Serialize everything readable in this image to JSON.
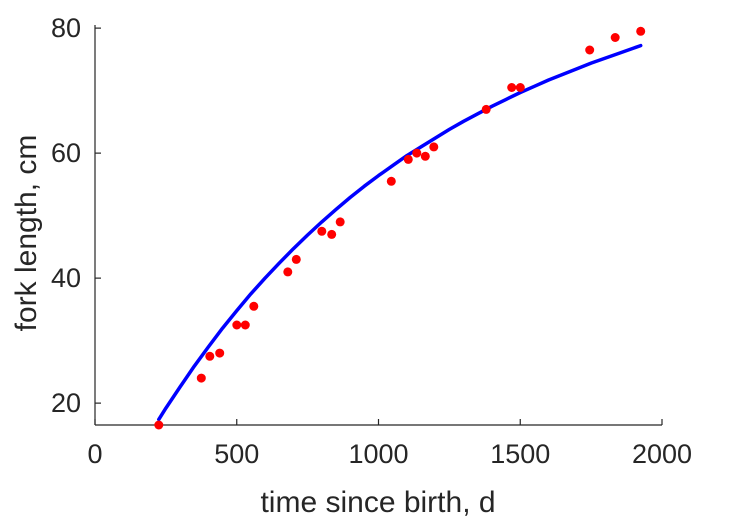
{
  "chart_data": {
    "type": "scatter",
    "xlabel": "time since birth, d",
    "ylabel": "fork length, cm",
    "xlim": [
      0,
      2000
    ],
    "ylim": [
      16.5,
      80.5
    ],
    "xticks": [
      0,
      500,
      1000,
      1500,
      2000
    ],
    "yticks": [
      20,
      40,
      60,
      80
    ],
    "grid": false,
    "colors": {
      "points": "#ff0000",
      "fit": "#0000ff",
      "axes": "#262626"
    },
    "series": [
      {
        "kind": "points",
        "x": [
          225,
          375,
          405,
          440,
          500,
          530,
          560,
          680,
          710,
          800,
          835,
          865,
          1045,
          1105,
          1135,
          1165,
          1195,
          1380,
          1470,
          1500,
          1745,
          1835,
          1925
        ],
        "y": [
          16.5,
          24,
          27.5,
          28,
          32.5,
          32.5,
          35.5,
          41,
          43,
          47.5,
          47,
          49,
          55.5,
          59,
          60,
          59.5,
          61,
          67,
          70.5,
          70.5,
          76.5,
          78.5,
          79.5
        ]
      },
      {
        "kind": "fit-curve",
        "x": [
          225,
          250,
          300,
          350,
          400,
          450,
          500,
          550,
          600,
          650,
          700,
          750,
          800,
          850,
          900,
          950,
          1000,
          1050,
          1100,
          1150,
          1200,
          1250,
          1300,
          1350,
          1400,
          1450,
          1500,
          1550,
          1600,
          1650,
          1700,
          1750,
          1800,
          1850,
          1900,
          1925
        ],
        "y": [
          17.4,
          19.2,
          22.6,
          25.9,
          29.0,
          32.0,
          34.8,
          37.5,
          40.0,
          42.4,
          44.7,
          46.9,
          49.0,
          51.0,
          52.9,
          54.7,
          56.4,
          58.0,
          59.6,
          61.0,
          62.4,
          63.8,
          65.1,
          66.3,
          67.5,
          68.6,
          69.7,
          70.7,
          71.7,
          72.6,
          73.5,
          74.4,
          75.2,
          76.0,
          76.8,
          77.2
        ]
      }
    ]
  }
}
